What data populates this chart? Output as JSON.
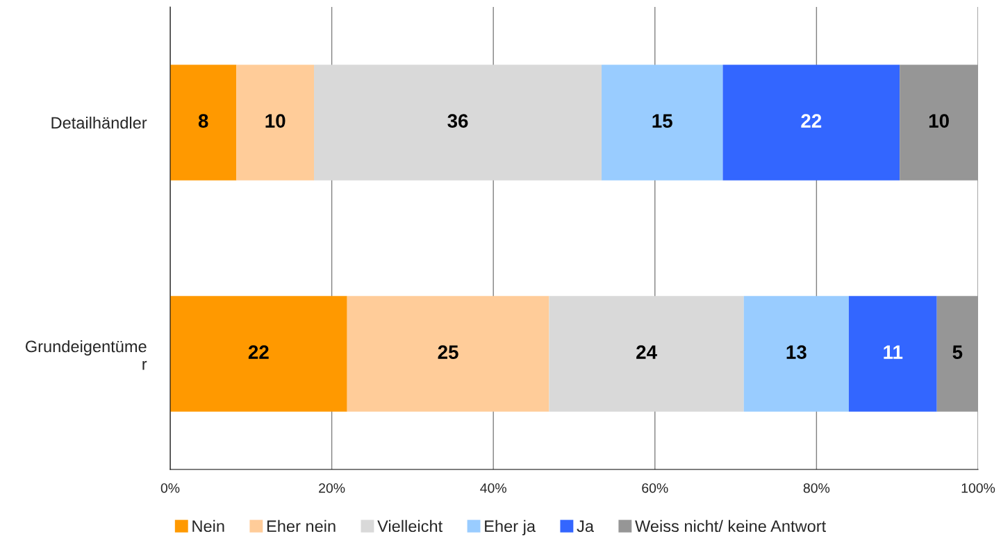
{
  "chart_data": {
    "type": "bar",
    "orientation": "horizontal",
    "stacked": true,
    "categories": [
      "Detailhändler",
      "Grundeigentüme\nr"
    ],
    "series": [
      {
        "name": "Nein",
        "color": "#ff9900",
        "values": [
          8.2,
          21.9
        ],
        "value_labels": [
          "8",
          "22"
        ]
      },
      {
        "name": "Eher nein",
        "color": "#ffcc99",
        "values": [
          9.6,
          25.0
        ],
        "value_labels": [
          "10",
          "25"
        ]
      },
      {
        "name": "Vielleicht",
        "color": "#d9d9d9",
        "values": [
          35.6,
          24.1
        ],
        "value_labels": [
          "36",
          "24"
        ]
      },
      {
        "name": "Eher ja",
        "color": "#99ccff",
        "values": [
          15.0,
          13.0
        ],
        "value_labels": [
          "15",
          "13"
        ]
      },
      {
        "name": "Ja",
        "color": "#3366ff",
        "values": [
          21.9,
          10.9
        ],
        "value_labels": [
          "22",
          "11"
        ]
      },
      {
        "name": "Weiss nicht/ keine Antwort",
        "color": "#969696",
        "values": [
          9.7,
          5.1
        ],
        "value_labels": [
          "10",
          "5"
        ]
      }
    ],
    "xlim": [
      0,
      100
    ],
    "xticks": [
      {
        "value": 0,
        "label": "0%"
      },
      {
        "value": 20,
        "label": "20%"
      },
      {
        "value": 40,
        "label": "40%"
      },
      {
        "value": 60,
        "label": "60%"
      },
      {
        "value": 80,
        "label": "80%"
      },
      {
        "value": 100,
        "label": "100%"
      }
    ],
    "grid": "x",
    "legend": "bottom"
  }
}
